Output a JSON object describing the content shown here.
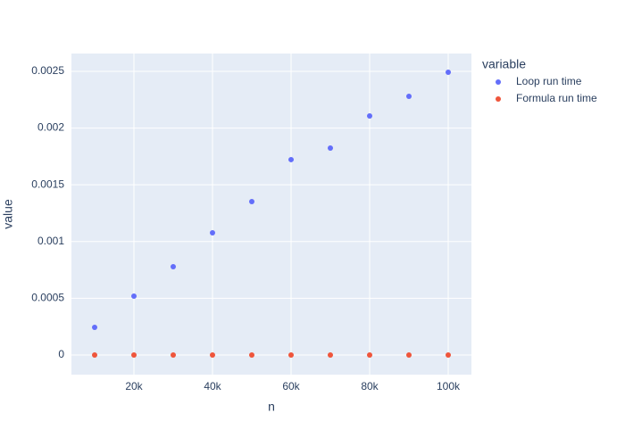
{
  "chart_data": {
    "type": "scatter",
    "x_label": "n",
    "y_label": "value",
    "legend_title": "variable",
    "legend_position": "right",
    "x": [
      10000,
      20000,
      30000,
      40000,
      50000,
      60000,
      70000,
      80000,
      90000,
      100000
    ],
    "series": [
      {
        "name": "Loop run time",
        "color": "#636efa",
        "values": [
          0.000244,
          0.000519,
          0.000778,
          0.001077,
          0.001352,
          0.001722,
          0.001824,
          0.002107,
          0.00228,
          0.002492
        ]
      },
      {
        "name": "Formula run time",
        "color": "#ef553b",
        "values": [
          0,
          0,
          0,
          0,
          0,
          0,
          0,
          0,
          0,
          0
        ]
      }
    ],
    "xlim": [
      4091,
      105909
    ],
    "xticks": [
      {
        "value": 20000,
        "label": "20k"
      },
      {
        "value": 40000,
        "label": "40k"
      },
      {
        "value": 60000,
        "label": "60k"
      },
      {
        "value": 80000,
        "label": "80k"
      },
      {
        "value": 100000,
        "label": "100k"
      }
    ],
    "ylim": [
      -0.000173,
      0.002657
    ],
    "yticks": [
      0,
      0.0005,
      0.001,
      0.0015,
      0.002,
      0.0025
    ],
    "grid": true,
    "background": "#e5ecf6"
  }
}
